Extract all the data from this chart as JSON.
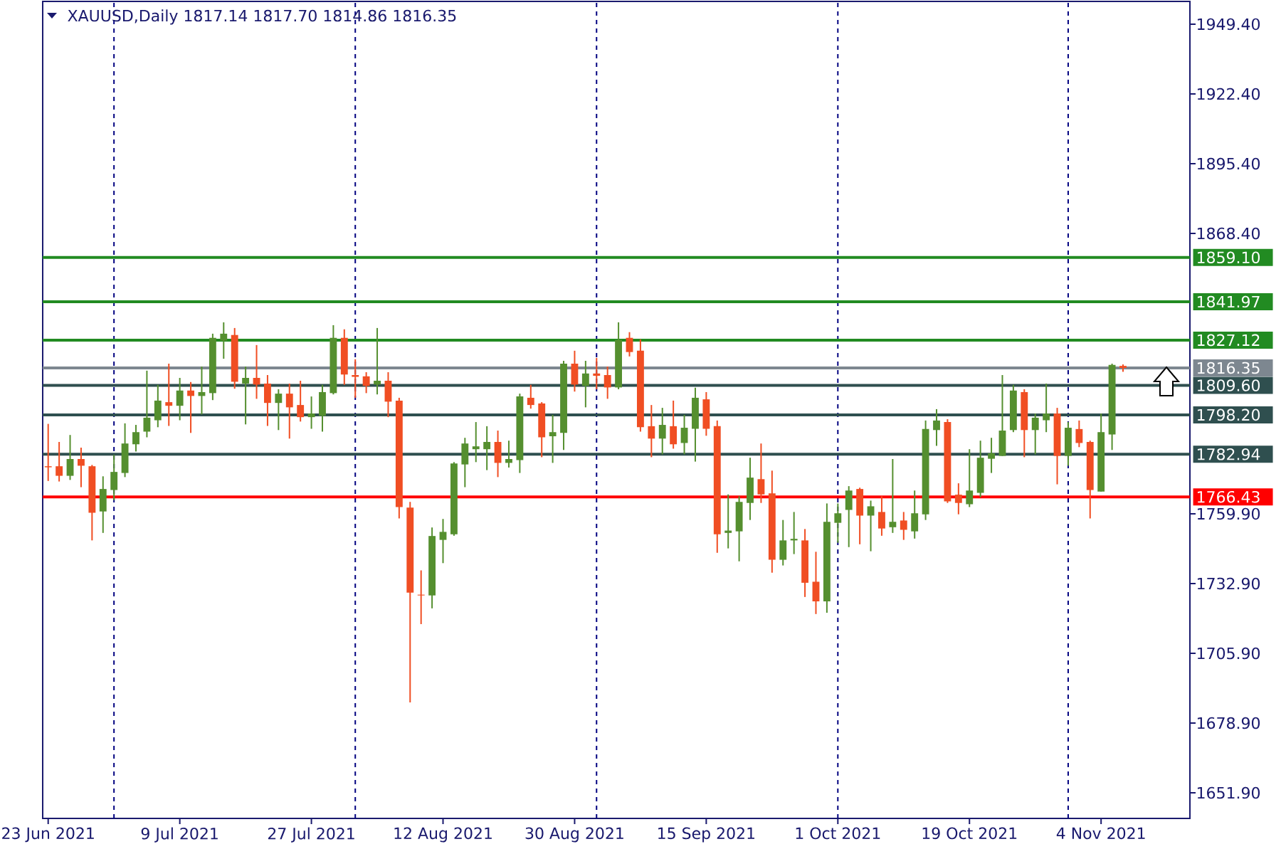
{
  "chart_data": {
    "type": "candlestick",
    "title": "XAUUSD,Daily 1817.14 1817.70 1814.86 1816.35",
    "categories": [
      "23 Jun 2021",
      null,
      null,
      null,
      null,
      null,
      null,
      null,
      null,
      null,
      null,
      null,
      "9 Jul 2021",
      null,
      null,
      null,
      null,
      null,
      null,
      null,
      null,
      null,
      null,
      null,
      "27 Jul 2021",
      null,
      null,
      null,
      null,
      null,
      null,
      null,
      null,
      null,
      null,
      null,
      "12 Aug 2021",
      null,
      null,
      null,
      null,
      null,
      null,
      null,
      null,
      null,
      null,
      null,
      "30 Aug 2021",
      null,
      null,
      null,
      null,
      null,
      null,
      null,
      null,
      null,
      null,
      null,
      "15 Sep 2021",
      null,
      null,
      null,
      null,
      null,
      null,
      null,
      null,
      null,
      null,
      null,
      "1 Oct 2021",
      null,
      null,
      null,
      null,
      null,
      null,
      null,
      null,
      null,
      null,
      null,
      "19 Oct 2021",
      null,
      null,
      null,
      null,
      null,
      null,
      null,
      null,
      null,
      null,
      null,
      "4 Nov 2021",
      null,
      null
    ],
    "ohlc": [
      [
        1778.3,
        1794.7,
        1772.6,
        1777.9
      ],
      [
        1778.3,
        1787.7,
        1772.4,
        1774.6
      ],
      [
        1774.6,
        1790.4,
        1773.0,
        1781.1
      ],
      [
        1781.1,
        1785.5,
        1770.2,
        1778.5
      ],
      [
        1778.3,
        1778.8,
        1749.6,
        1760.3
      ],
      [
        1760.8,
        1774.4,
        1752.5,
        1769.5
      ],
      [
        1769.1,
        1782.7,
        1765.2,
        1776.1
      ],
      [
        1775.7,
        1794.9,
        1774.1,
        1787.1
      ],
      [
        1786.8,
        1794.3,
        1784.0,
        1791.5
      ],
      [
        1791.7,
        1815.3,
        1789.5,
        1797.1
      ],
      [
        1796.1,
        1809.8,
        1793.4,
        1803.7
      ],
      [
        1803.1,
        1818.0,
        1793.9,
        1801.7
      ],
      [
        1801.7,
        1812.5,
        1796.1,
        1807.6
      ],
      [
        1807.6,
        1810.9,
        1791.2,
        1805.5
      ],
      [
        1805.5,
        1816.9,
        1798.4,
        1807.0
      ],
      [
        1806.6,
        1829.6,
        1803.9,
        1828.0
      ],
      [
        1826.9,
        1834.0,
        1819.9,
        1829.6
      ],
      [
        1829.1,
        1831.8,
        1808.3,
        1811.0
      ],
      [
        1810.3,
        1816.9,
        1794.5,
        1812.5
      ],
      [
        1812.5,
        1825.2,
        1804.4,
        1809.9
      ],
      [
        1810.3,
        1813.6,
        1793.9,
        1802.8
      ],
      [
        1802.8,
        1808.1,
        1792.3,
        1806.4
      ],
      [
        1806.4,
        1810.3,
        1789.0,
        1801.1
      ],
      [
        1802.0,
        1811.4,
        1795.6,
        1797.3
      ],
      [
        1797.3,
        1805.3,
        1792.8,
        1798.7
      ],
      [
        1797.8,
        1809.8,
        1791.7,
        1807.0
      ],
      [
        1806.6,
        1832.9,
        1806.1,
        1828.0
      ],
      [
        1828.0,
        1831.3,
        1809.8,
        1813.8
      ],
      [
        1813.6,
        1819.7,
        1804.8,
        1812.9
      ],
      [
        1813.1,
        1814.7,
        1806.6,
        1809.4
      ],
      [
        1809.9,
        1831.8,
        1806.1,
        1811.4
      ],
      [
        1811.4,
        1814.7,
        1797.3,
        1803.3
      ],
      [
        1803.7,
        1804.8,
        1758.1,
        1762.5
      ],
      [
        1762.3,
        1764.5,
        1686.9,
        1729.4
      ],
      [
        1728.6,
        1738.0,
        1717.2,
        1728.3
      ],
      [
        1728.3,
        1754.6,
        1723.3,
        1751.3
      ],
      [
        1749.8,
        1757.9,
        1740.8,
        1752.9
      ],
      [
        1752.0,
        1779.9,
        1751.4,
        1779.4
      ],
      [
        1779.0,
        1789.3,
        1770.2,
        1787.1
      ],
      [
        1784.9,
        1795.4,
        1779.9,
        1786.0
      ],
      [
        1784.9,
        1793.8,
        1776.8,
        1787.7
      ],
      [
        1787.7,
        1792.1,
        1774.1,
        1779.6
      ],
      [
        1779.6,
        1788.2,
        1777.8,
        1781.1
      ],
      [
        1780.7,
        1806.4,
        1775.7,
        1805.3
      ],
      [
        1804.8,
        1809.8,
        1800.6,
        1802.0
      ],
      [
        1802.6,
        1803.1,
        1781.8,
        1789.5
      ],
      [
        1789.9,
        1798.2,
        1779.6,
        1791.5
      ],
      [
        1791.2,
        1819.1,
        1784.6,
        1818.0
      ],
      [
        1818.0,
        1823.0,
        1807.2,
        1809.9
      ],
      [
        1809.4,
        1819.1,
        1801.1,
        1814.2
      ],
      [
        1814.2,
        1820.2,
        1808.1,
        1813.3
      ],
      [
        1813.6,
        1816.9,
        1804.4,
        1808.8
      ],
      [
        1808.8,
        1834.0,
        1808.1,
        1827.2
      ],
      [
        1828.0,
        1830.2,
        1820.8,
        1822.5
      ],
      [
        1823.0,
        1827.4,
        1791.7,
        1793.4
      ],
      [
        1793.8,
        1802.0,
        1781.8,
        1789.0
      ],
      [
        1789.0,
        1800.9,
        1782.9,
        1794.3
      ],
      [
        1793.8,
        1803.7,
        1785.1,
        1786.8
      ],
      [
        1787.3,
        1798.2,
        1782.9,
        1793.2
      ],
      [
        1792.8,
        1808.7,
        1780.1,
        1804.8
      ],
      [
        1804.2,
        1807.0,
        1790.1,
        1792.8
      ],
      [
        1793.8,
        1796.0,
        1744.8,
        1752.0
      ],
      [
        1752.5,
        1767.4,
        1746.5,
        1753.4
      ],
      [
        1753.1,
        1766.7,
        1741.5,
        1764.5
      ],
      [
        1764.1,
        1781.6,
        1757.5,
        1773.9
      ],
      [
        1773.3,
        1787.1,
        1764.1,
        1767.4
      ],
      [
        1767.8,
        1776.6,
        1737.1,
        1742.1
      ],
      [
        1742.1,
        1757.5,
        1739.9,
        1749.6
      ],
      [
        1749.6,
        1760.6,
        1744.3,
        1750.2
      ],
      [
        1749.6,
        1754.0,
        1727.7,
        1733.2
      ],
      [
        1733.6,
        1745.2,
        1721.1,
        1726.0
      ],
      [
        1726.0,
        1763.9,
        1721.6,
        1756.8
      ],
      [
        1756.4,
        1763.9,
        1748.7,
        1760.1
      ],
      [
        1761.4,
        1770.6,
        1747.0,
        1768.9
      ],
      [
        1769.5,
        1770.0,
        1748.1,
        1759.2
      ],
      [
        1759.2,
        1765.0,
        1745.4,
        1762.8
      ],
      [
        1760.6,
        1766.7,
        1751.4,
        1754.2
      ],
      [
        1754.7,
        1781.1,
        1752.5,
        1756.8
      ],
      [
        1757.3,
        1760.6,
        1749.8,
        1753.7
      ],
      [
        1753.1,
        1768.9,
        1750.3,
        1760.1
      ],
      [
        1759.7,
        1796.0,
        1757.5,
        1792.7
      ],
      [
        1792.3,
        1800.4,
        1786.2,
        1796.0
      ],
      [
        1795.4,
        1796.5,
        1764.1,
        1764.7
      ],
      [
        1767.3,
        1771.7,
        1759.7,
        1764.1
      ],
      [
        1763.6,
        1784.9,
        1762.5,
        1768.9
      ],
      [
        1768.0,
        1788.2,
        1766.3,
        1781.6
      ],
      [
        1781.2,
        1789.3,
        1775.7,
        1783.3
      ],
      [
        1782.3,
        1813.6,
        1782.3,
        1792.1
      ],
      [
        1792.3,
        1809.8,
        1791.5,
        1807.6
      ],
      [
        1807.0,
        1808.1,
        1781.8,
        1792.3
      ],
      [
        1792.3,
        1798.7,
        1782.9,
        1797.1
      ],
      [
        1796.1,
        1810.3,
        1791.5,
        1798.7
      ],
      [
        1798.7,
        1800.9,
        1771.3,
        1782.3
      ],
      [
        1782.3,
        1795.4,
        1778.5,
        1793.2
      ],
      [
        1792.7,
        1796.0,
        1785.7,
        1787.3
      ],
      [
        1787.7,
        1788.2,
        1758.1,
        1769.1
      ],
      [
        1768.5,
        1798.7,
        1768.5,
        1791.5
      ],
      [
        1790.6,
        1818.0,
        1784.6,
        1817.5
      ],
      [
        1817.14,
        1817.7,
        1814.86,
        1816.35
      ]
    ],
    "colors": [
      "#f04e23",
      "#f04e23",
      "#558f2f",
      "#f04e23",
      "#f04e23",
      "#558f2f",
      "#558f2f",
      "#558f2f",
      "#558f2f",
      "#558f2f",
      "#558f2f",
      "#f04e23",
      "#558f2f",
      "#f04e23",
      "#558f2f",
      "#558f2f",
      "#558f2f",
      "#f04e23",
      "#558f2f",
      "#f04e23",
      "#f04e23",
      "#558f2f",
      "#f04e23",
      "#f04e23",
      "#558f2f",
      "#558f2f",
      "#558f2f",
      "#f04e23",
      "#f04e23",
      "#f04e23",
      "#558f2f",
      "#f04e23",
      "#f04e23",
      "#f04e23",
      "#f04e23",
      "#558f2f",
      "#558f2f",
      "#558f2f",
      "#558f2f",
      "#558f2f",
      "#558f2f",
      "#f04e23",
      "#558f2f",
      "#558f2f",
      "#f04e23",
      "#f04e23",
      "#558f2f",
      "#558f2f",
      "#f04e23",
      "#558f2f",
      "#f04e23",
      "#f04e23",
      "#558f2f",
      "#f04e23",
      "#f04e23",
      "#f04e23",
      "#558f2f",
      "#f04e23",
      "#558f2f",
      "#558f2f",
      "#f04e23",
      "#f04e23",
      "#558f2f",
      "#558f2f",
      "#558f2f",
      "#f04e23",
      "#f04e23",
      "#558f2f",
      "#558f2f",
      "#f04e23",
      "#f04e23",
      "#558f2f",
      "#558f2f",
      "#558f2f",
      "#f04e23",
      "#558f2f",
      "#f04e23",
      "#558f2f",
      "#f04e23",
      "#558f2f",
      "#558f2f",
      "#558f2f",
      "#f04e23",
      "#f04e23",
      "#558f2f",
      "#558f2f",
      "#558f2f",
      "#558f2f",
      "#558f2f",
      "#f04e23",
      "#558f2f",
      "#558f2f",
      "#f04e23",
      "#558f2f",
      "#f04e23",
      "#f04e23",
      "#558f2f",
      "#558f2f",
      "#f04e23"
    ],
    "ylim": [
      1642.0,
      1958.2
    ],
    "yticks": [
      {
        "value": 1949.4,
        "label": "1949.40"
      },
      {
        "value": 1922.4,
        "label": "1922.40"
      },
      {
        "value": 1895.4,
        "label": "1895.40"
      },
      {
        "value": 1868.4,
        "label": "1868.40"
      },
      {
        "value": 1759.9,
        "label": "1759.90"
      },
      {
        "value": 1732.9,
        "label": "1732.90"
      },
      {
        "value": 1705.9,
        "label": "1705.90"
      },
      {
        "value": 1678.9,
        "label": "1678.90"
      },
      {
        "value": 1651.9,
        "label": "1651.90"
      }
    ],
    "grid": "x",
    "ref_lines": [
      {
        "axis": "y",
        "value": 1859.1,
        "label": "1859.10",
        "color": "#228b22"
      },
      {
        "axis": "y",
        "value": 1841.97,
        "label": "1841.97",
        "color": "#228b22"
      },
      {
        "axis": "y",
        "value": 1827.12,
        "label": "1827.12",
        "color": "#228b22"
      },
      {
        "axis": "y",
        "value": 1816.35,
        "label": "1816.35",
        "color": "#7d8790"
      },
      {
        "axis": "y",
        "value": 1809.6,
        "label": "1809.60",
        "color": "#2f4f4f"
      },
      {
        "axis": "y",
        "value": 1798.2,
        "label": "1798.20",
        "color": "#2f4f4f"
      },
      {
        "axis": "y",
        "value": 1782.94,
        "label": "1782.94",
        "color": "#2f4f4f"
      },
      {
        "axis": "y",
        "value": 1766.43,
        "label": "1766.43",
        "color": "#ff0000"
      }
    ]
  }
}
